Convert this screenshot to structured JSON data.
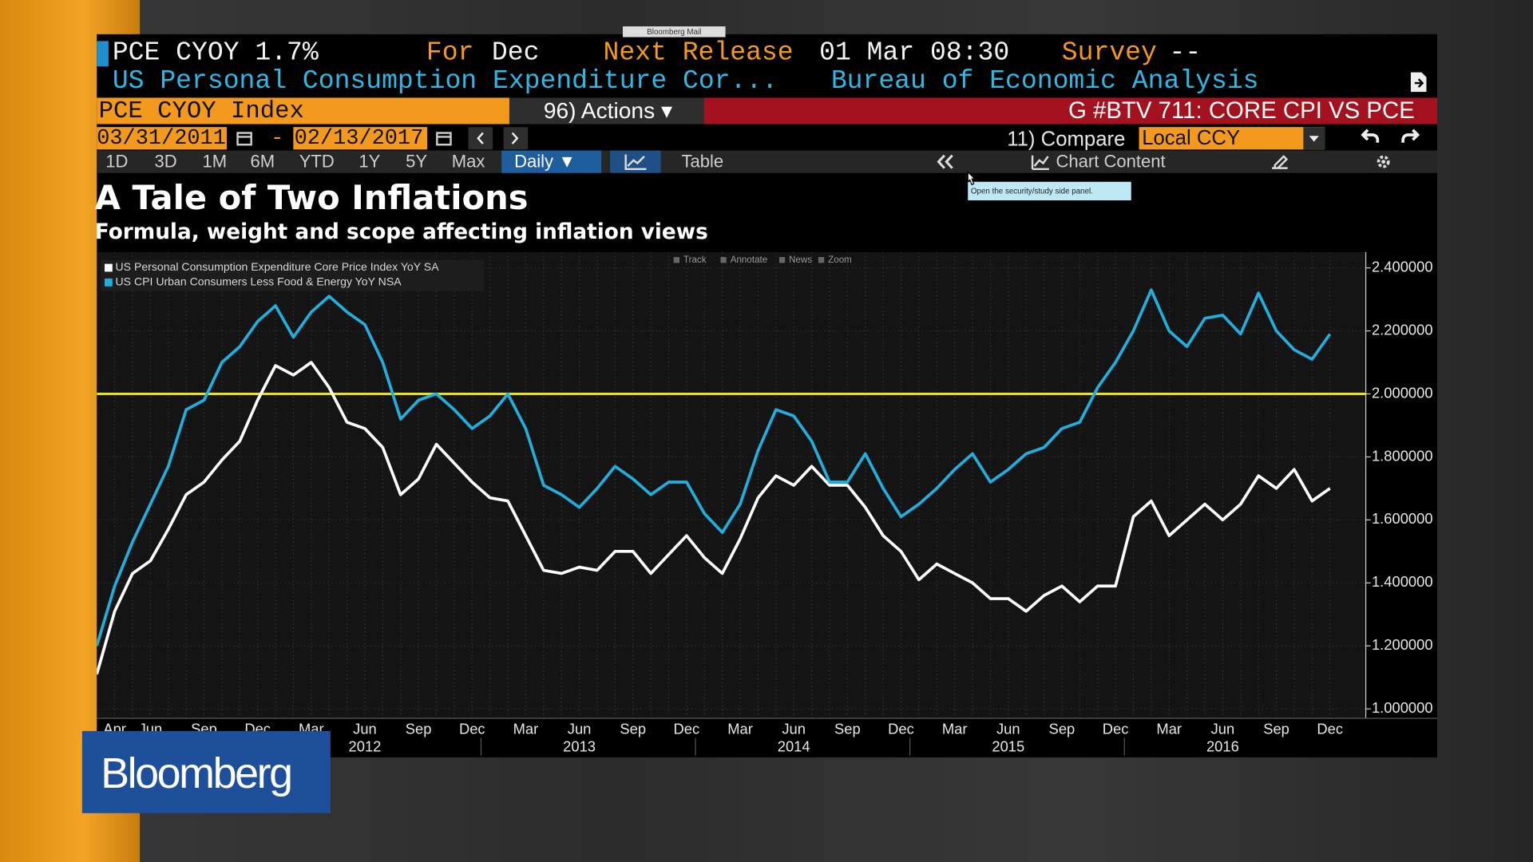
{
  "header": {
    "mail_tab": "Bloomberg Mail",
    "ticker": "PCE CYOY 1.7%",
    "for_label": "For",
    "for_value": "Dec",
    "release_label": "Next Release",
    "release_value": "01 Mar 08:30",
    "survey_label": "Survey",
    "survey_value": "--",
    "description": "US Personal Consumption Expenditure Cor...",
    "source": "Bureau of Economic Analysis"
  },
  "toolbar": {
    "security": "PCE CYOY Index",
    "actions": "96) Actions ▾",
    "function": "G #BTV 711: CORE CPI VS PCE",
    "start_date": "03/31/2011",
    "date_separator": "-",
    "end_date": "02/13/2017",
    "compare": "11) Compare",
    "currency": "Local CCY",
    "ranges": [
      "1D",
      "3D",
      "1M",
      "6M",
      "YTD",
      "1Y",
      "5Y",
      "Max"
    ],
    "frequency": "Daily ▼",
    "table": "Table",
    "chart_content": "Chart Content",
    "tooltip": "Open the security/study side panel."
  },
  "chart_tools": [
    "Track",
    "Annotate",
    "News",
    "Zoom"
  ],
  "logo": "Bloomberg",
  "chart_data": {
    "type": "line",
    "title": "A Tale of Two Inflations",
    "subtitle": "Formula, weight and scope affecting inflation views",
    "categories": [
      null,
      "Apr",
      null,
      "Jun",
      null,
      null,
      "Sep",
      null,
      null,
      "Dec",
      null,
      null,
      "Mar",
      null,
      null,
      "Jun",
      null,
      null,
      "Sep",
      null,
      null,
      "Dec",
      null,
      null,
      "Mar",
      null,
      null,
      "Jun",
      null,
      null,
      "Sep",
      null,
      null,
      "Dec",
      null,
      null,
      "Mar",
      null,
      null,
      "Jun",
      null,
      null,
      "Sep",
      null,
      null,
      "Dec",
      null,
      null,
      "Mar",
      null,
      null,
      "Jun",
      null,
      null,
      "Sep",
      null,
      null,
      "Dec",
      null,
      null,
      "Mar",
      null,
      null,
      "Jun",
      null,
      null,
      "Sep",
      null,
      null,
      "Dec"
    ],
    "years": [
      "2012",
      "2013",
      "2014",
      "2015",
      "2016"
    ],
    "series": [
      {
        "name": "US Personal Consumption Expenditure Core Price Index YoY SA",
        "color": "#ffffff",
        "values": [
          1.11,
          1.31,
          1.43,
          1.47,
          1.57,
          1.68,
          1.72,
          1.79,
          1.85,
          1.98,
          2.09,
          2.06,
          2.1,
          2.02,
          1.91,
          1.89,
          1.83,
          1.68,
          1.73,
          1.84,
          1.78,
          1.72,
          1.67,
          1.66,
          1.55,
          1.44,
          1.43,
          1.45,
          1.44,
          1.5,
          1.5,
          1.43,
          1.49,
          1.55,
          1.48,
          1.43,
          1.54,
          1.67,
          1.74,
          1.71,
          1.77,
          1.71,
          1.71,
          1.64,
          1.55,
          1.5,
          1.41,
          1.46,
          1.43,
          1.4,
          1.35,
          1.35,
          1.31,
          1.36,
          1.39,
          1.34,
          1.39,
          1.39,
          1.61,
          1.66,
          1.55,
          1.6,
          1.65,
          1.6,
          1.65,
          1.74,
          1.7,
          1.76,
          1.66,
          1.7
        ]
      },
      {
        "name": "US CPI Urban Consumers Less Food & Energy YoY NSA",
        "color": "#1fb0e0",
        "values": [
          1.2,
          1.39,
          1.53,
          1.65,
          1.77,
          1.95,
          1.98,
          2.1,
          2.15,
          2.23,
          2.28,
          2.18,
          2.26,
          2.31,
          2.26,
          2.22,
          2.1,
          1.92,
          1.98,
          2.0,
          1.95,
          1.89,
          1.93,
          2.0,
          1.89,
          1.71,
          1.68,
          1.64,
          1.7,
          1.77,
          1.73,
          1.68,
          1.72,
          1.72,
          1.62,
          1.56,
          1.65,
          1.82,
          1.95,
          1.93,
          1.85,
          1.72,
          1.72,
          1.81,
          1.7,
          1.61,
          1.65,
          1.7,
          1.76,
          1.81,
          1.72,
          1.76,
          1.81,
          1.83,
          1.89,
          1.91,
          2.02,
          2.1,
          2.2,
          2.33,
          2.2,
          2.15,
          2.24,
          2.25,
          2.19,
          2.32,
          2.2,
          2.14,
          2.11,
          2.19
        ]
      }
    ],
    "reference_line": {
      "value": 2,
      "color": "#e8e020"
    },
    "ylim": [
      0.97,
      2.45
    ],
    "yticks": [
      {
        "value": 1,
        "label": "1.000000"
      },
      {
        "value": 1.2,
        "label": "1.200000"
      },
      {
        "value": 1.4,
        "label": "1.400000"
      },
      {
        "value": 1.6,
        "label": "1.600000"
      },
      {
        "value": 1.8,
        "label": "1.800000"
      },
      {
        "value": 2,
        "label": "2.000000"
      },
      {
        "value": 2.2,
        "label": "2.200000"
      },
      {
        "value": 2.4,
        "label": "2.400000"
      }
    ],
    "grid": true,
    "legend": "top-left"
  }
}
